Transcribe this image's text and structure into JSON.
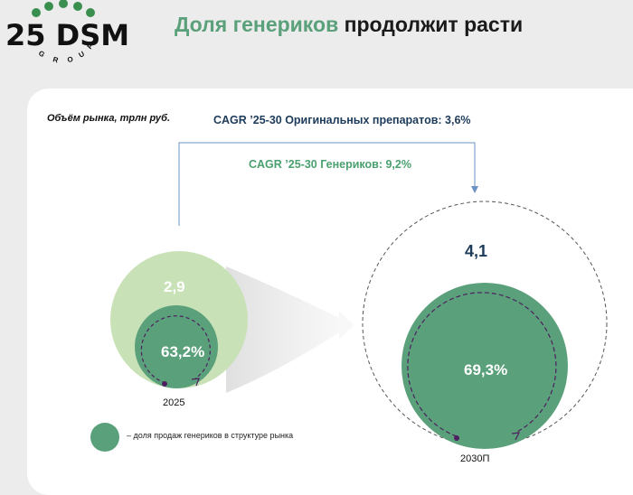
{
  "logo": {
    "text": "25 DSM",
    "subtext": "GROUP"
  },
  "header": {
    "title_accent": "Доля генериков",
    "title_rest": " продолжит расти"
  },
  "chart": {
    "subtitle": "Объём рынка, трлн руб.",
    "cagr_originals": "CAGR ’25-30 Оригинальных препаратов: 3,6%",
    "cagr_generics": "CAGR ’25-30 Генериков: 9,2%",
    "year_2025": {
      "label": "2025",
      "market_volume": "2,9",
      "generic_share": "63,2%"
    },
    "year_2030": {
      "label": "2030П",
      "market_volume": "4,1",
      "generic_share": "69,3%"
    },
    "legend": "– доля продаж генериков в структуре рынка"
  },
  "colors": {
    "accent_green": "#5aa07a",
    "light_green": "#c8e1b6",
    "navy": "#1d3b5a",
    "arrow_blue": "#6d93c4",
    "marker_purple": "#4d2060"
  }
}
